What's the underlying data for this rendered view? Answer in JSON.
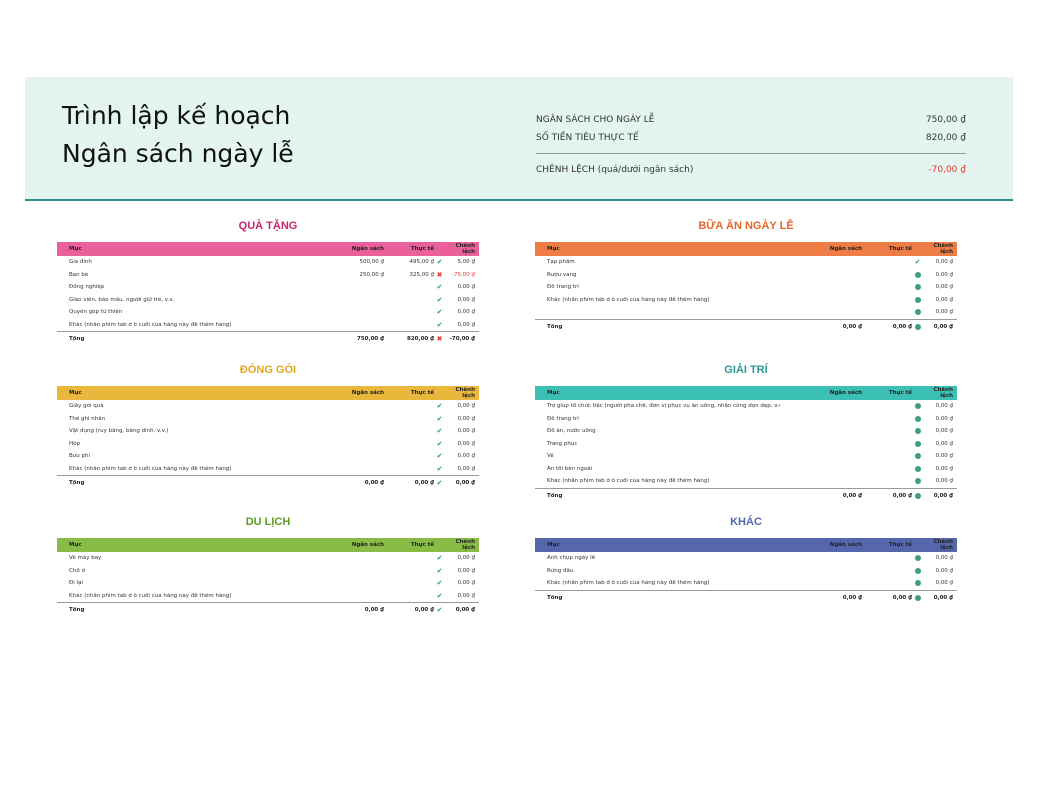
{
  "header": {
    "title_line1": "Trình lập kế hoạch",
    "title_line2": "Ngân sách ngày lễ",
    "summary": {
      "budget_label": "NGÂN SÁCH CHO NGÀY LỄ",
      "budget_value": "750,00 ₫",
      "actual_label": "SỐ TIỀN TIÊU THỰC TẾ",
      "actual_value": "820,00 ₫",
      "diff_label": "CHÊNH LỆCH (quá/dưới ngân sách)",
      "diff_value": "-70,00 ₫"
    }
  },
  "colors": {
    "gifts": "#e9609a",
    "gifts_title": "#c8246e",
    "meals": "#ee7c45",
    "meals_title": "#e4662a",
    "packing": "#e9b73c",
    "packing_title": "#e0a81c",
    "entertainment": "#3cc0b5",
    "entertainment_title": "#2a9a92",
    "travel": "#88bc46",
    "travel_title": "#5e9a20",
    "other": "#5566ad",
    "other_title": "#5566ad"
  },
  "columns": {
    "item": "Mục",
    "budget": "Ngân sách",
    "actual": "Thực tế",
    "variance": "Chênh lệch"
  },
  "sections": {
    "gifts": {
      "title": "QUÀ TẶNG",
      "rows": [
        {
          "item": "Gia đình",
          "budget": "500,00 ₫",
          "actual": "495,00 ₫",
          "icon": "check",
          "variance": "5,00 ₫"
        },
        {
          "item": "Bạn bè",
          "budget": "250,00 ₫",
          "actual": "325,00 ₫",
          "icon": "cross",
          "variance": "-75,00 ₫"
        },
        {
          "item": "Đồng nghiệp",
          "budget": "",
          "actual": "",
          "icon": "check",
          "variance": "0,00 ₫"
        },
        {
          "item": "Giáo viên, bảo mẫu, người giữ trẻ, v.v.",
          "budget": "",
          "actual": "",
          "icon": "check",
          "variance": "0,00 ₫"
        },
        {
          "item": "Quyên góp từ thiện",
          "budget": "",
          "actual": "",
          "icon": "check",
          "variance": "0,00 ₫"
        },
        {
          "item": "Khác (nhấn phím tab ở ô cuối của hàng này để thêm hàng)",
          "budget": "",
          "actual": "",
          "icon": "check",
          "variance": "0,00 ₫"
        }
      ],
      "total": {
        "label": "Tổng",
        "budget": "750,00 ₫",
        "actual": "820,00 ₫",
        "icon": "cross",
        "variance": "-70,00 ₫"
      }
    },
    "meals": {
      "title": "BỮA ĂN NGÀY LỄ",
      "rows": [
        {
          "item": "Tạp phẩm",
          "budget": "",
          "actual": "",
          "icon": "check",
          "variance": "0,00 ₫"
        },
        {
          "item": "Rượu vang",
          "budget": "",
          "actual": "",
          "icon": "dot",
          "variance": "0,00 ₫"
        },
        {
          "item": "Đồ trang trí",
          "budget": "",
          "actual": "",
          "icon": "dot",
          "variance": "0,00 ₫"
        },
        {
          "item": "Khác (nhấn phím tab ở ô cuối của hàng này để thêm hàng)",
          "budget": "",
          "actual": "",
          "icon": "dot",
          "variance": "0,00 ₫"
        },
        {
          "item": "",
          "budget": "",
          "actual": "",
          "icon": "dot",
          "variance": "0,00 ₫"
        }
      ],
      "total": {
        "label": "Tổng",
        "budget": "0,00 ₫",
        "actual": "0,00 ₫",
        "icon": "dot",
        "variance": "0,00 ₫"
      }
    },
    "packing": {
      "title": "ĐÓNG GÓI",
      "rows": [
        {
          "item": "Giấy gói quà",
          "budget": "",
          "actual": "",
          "icon": "check",
          "variance": "0,00 ₫"
        },
        {
          "item": "Thẻ ghi nhãn",
          "budget": "",
          "actual": "",
          "icon": "check",
          "variance": "0,00 ₫"
        },
        {
          "item": "Vật dụng (ruy băng, băng dính, v.v.)",
          "budget": "",
          "actual": "",
          "icon": "check",
          "variance": "0,00 ₫"
        },
        {
          "item": "Hộp",
          "budget": "",
          "actual": "",
          "icon": "check",
          "variance": "0,00 ₫"
        },
        {
          "item": "Bưu phí",
          "budget": "",
          "actual": "",
          "icon": "check",
          "variance": "0,00 ₫"
        },
        {
          "item": "Khác (nhấn phím tab ở ô cuối của hàng này để thêm hàng)",
          "budget": "",
          "actual": "",
          "icon": "check",
          "variance": "0,00 ₫"
        }
      ],
      "total": {
        "label": "Tổng",
        "budget": "0,00 ₫",
        "actual": "0,00 ₫",
        "icon": "check",
        "variance": "0,00 ₫"
      }
    },
    "entertainment": {
      "title": "GIẢI TRÍ",
      "rows": [
        {
          "item": "Trợ giúp tổ chức tiệc (người pha chế, đơn vị phục vụ ăn uống, nhân công dọn dẹp, v.v.)",
          "budget": "",
          "actual": "",
          "icon": "dot",
          "variance": "0,00 ₫"
        },
        {
          "item": "Đồ trang trí",
          "budget": "",
          "actual": "",
          "icon": "dot",
          "variance": "0,00 ₫"
        },
        {
          "item": "Đồ ăn, nước uống",
          "budget": "",
          "actual": "",
          "icon": "dot",
          "variance": "0,00 ₫"
        },
        {
          "item": "Trang phục",
          "budget": "",
          "actual": "",
          "icon": "dot",
          "variance": "0,00 ₫"
        },
        {
          "item": "Vé",
          "budget": "",
          "actual": "",
          "icon": "dot",
          "variance": "0,00 ₫"
        },
        {
          "item": "Ăn tối bên ngoài",
          "budget": "",
          "actual": "",
          "icon": "dot",
          "variance": "0,00 ₫"
        },
        {
          "item": "Khác (nhấn phím tab ở ô cuối của hàng này để thêm hàng)",
          "budget": "",
          "actual": "",
          "icon": "dot",
          "variance": "0,00 ₫"
        }
      ],
      "total": {
        "label": "Tổng",
        "budget": "0,00 ₫",
        "actual": "0,00 ₫",
        "icon": "dot",
        "variance": "0,00 ₫"
      }
    },
    "travel": {
      "title": "DU LỊCH",
      "rows": [
        {
          "item": "Vé máy bay",
          "budget": "",
          "actual": "",
          "icon": "check",
          "variance": "0,00 ₫"
        },
        {
          "item": "Chỗ ở",
          "budget": "",
          "actual": "",
          "icon": "check",
          "variance": "0,00 ₫"
        },
        {
          "item": "Đi lại",
          "budget": "",
          "actual": "",
          "icon": "check",
          "variance": "0,00 ₫"
        },
        {
          "item": "Khác (nhấn phím tab ở ô cuối của hàng này để thêm hàng)",
          "budget": "",
          "actual": "",
          "icon": "check",
          "variance": "0,00 ₫"
        }
      ],
      "total": {
        "label": "Tổng",
        "budget": "0,00 ₫",
        "actual": "0,00 ₫",
        "icon": "check",
        "variance": "0,00 ₫"
      }
    },
    "other": {
      "title": "KHÁC",
      "rows": [
        {
          "item": "Ảnh chụp ngày lễ",
          "budget": "",
          "actual": "",
          "icon": "dot",
          "variance": "0,00 ₫"
        },
        {
          "item": "Rửng đầu",
          "budget": "",
          "actual": "",
          "icon": "dot",
          "variance": "0,00 ₫"
        },
        {
          "item": "Khác (nhấn phím tab ở ô cuối của hàng này để thêm hàng)",
          "budget": "",
          "actual": "",
          "icon": "dot",
          "variance": "0,00 ₫"
        }
      ],
      "total": {
        "label": "Tổng",
        "budget": "0,00 ₫",
        "actual": "0,00 ₫",
        "icon": "dot",
        "variance": "0,00 ₫"
      }
    }
  }
}
